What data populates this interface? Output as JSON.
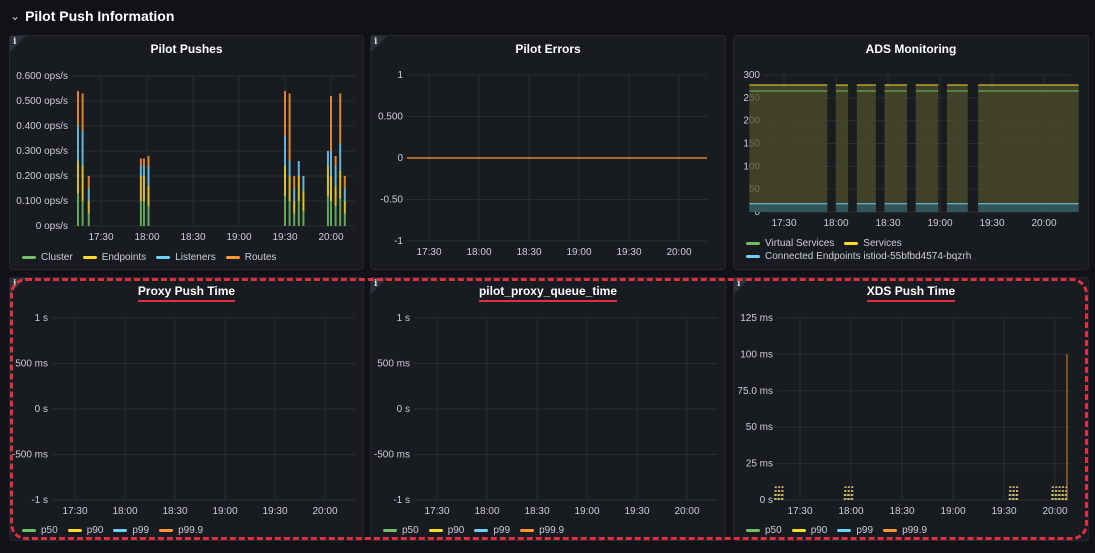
{
  "row": {
    "title": "Pilot Push Information",
    "chevron_icon": "chevron-down-icon"
  },
  "info_icon": "i",
  "panels": {
    "pilot_pushes": {
      "title": "Pilot Pushes",
      "y_ticks": [
        "0.600 ops/s",
        "0.500 ops/s",
        "0.400 ops/s",
        "0.300 ops/s",
        "0.200 ops/s",
        "0.100 ops/s",
        "0 ops/s"
      ],
      "x_ticks": [
        "17:30",
        "18:00",
        "18:30",
        "19:00",
        "19:30",
        "20:00"
      ],
      "legend": [
        {
          "label": "Cluster",
          "color": "#73bf69"
        },
        {
          "label": "Endpoints",
          "color": "#fade2a"
        },
        {
          "label": "Listeners",
          "color": "#73d0f8"
        },
        {
          "label": "Routes",
          "color": "#ff9830"
        }
      ]
    },
    "pilot_errors": {
      "title": "Pilot Errors",
      "y_ticks": [
        "1",
        "0.500",
        "0",
        "-0.50",
        "-1"
      ],
      "x_ticks": [
        "17:30",
        "18:00",
        "18:30",
        "19:00",
        "19:30",
        "20:00"
      ]
    },
    "ads_monitoring": {
      "title": "ADS Monitoring",
      "y_ticks": [
        "300",
        "250",
        "200",
        "150",
        "100",
        "50",
        "0"
      ],
      "x_ticks": [
        "17:30",
        "18:00",
        "18:30",
        "19:00",
        "19:30",
        "20:00"
      ],
      "legend": [
        {
          "label": "Virtual Services",
          "color": "#73bf69"
        },
        {
          "label": "Services",
          "color": "#fade2a"
        },
        {
          "label": "Connected Endpoints istiod-55bfbd4574-bqzrh",
          "color": "#73d0f8"
        }
      ]
    },
    "proxy_push_time": {
      "title": "Proxy Push Time",
      "y_ticks": [
        "1 s",
        "500 ms",
        "0 s",
        "-500 ms",
        "-1 s"
      ],
      "x_ticks": [
        "17:30",
        "18:00",
        "18:30",
        "19:00",
        "19:30",
        "20:00"
      ],
      "legend": [
        {
          "label": "p50",
          "color": "#73bf69"
        },
        {
          "label": "p90",
          "color": "#fade2a"
        },
        {
          "label": "p99",
          "color": "#73d0f8"
        },
        {
          "label": "p99.9",
          "color": "#ff9830"
        }
      ]
    },
    "pilot_proxy_queue_time": {
      "title": "pilot_proxy_queue_time",
      "y_ticks": [
        "1 s",
        "500 ms",
        "0 s",
        "-500 ms",
        "-1 s"
      ],
      "x_ticks": [
        "17:30",
        "18:00",
        "18:30",
        "19:00",
        "19:30",
        "20:00"
      ],
      "legend": [
        {
          "label": "p50",
          "color": "#73bf69"
        },
        {
          "label": "p90",
          "color": "#fade2a"
        },
        {
          "label": "p99",
          "color": "#73d0f8"
        },
        {
          "label": "p99.9",
          "color": "#ff9830"
        }
      ]
    },
    "xds_push_time": {
      "title": "XDS Push Time",
      "y_ticks": [
        "125 ms",
        "100 ms",
        "75.0 ms",
        "50 ms",
        "25 ms",
        "0 s"
      ],
      "x_ticks": [
        "17:30",
        "18:00",
        "18:30",
        "19:00",
        "19:30",
        "20:00"
      ],
      "legend": [
        {
          "label": "p50",
          "color": "#73bf69"
        },
        {
          "label": "p90",
          "color": "#fade2a"
        },
        {
          "label": "p99",
          "color": "#73d0f8"
        },
        {
          "label": "p99.9",
          "color": "#ff9830"
        }
      ]
    }
  },
  "chart_data": [
    {
      "type": "bar",
      "title": "Pilot Pushes",
      "ylim": [
        0,
        0.6
      ],
      "unit": "ops/s",
      "x": [
        "17:15",
        "17:18",
        "17:22",
        "17:56",
        "17:58",
        "18:01",
        "19:30",
        "19:33",
        "19:36",
        "19:39",
        "19:42",
        "19:58",
        "20:00",
        "20:03",
        "20:06",
        "20:09"
      ],
      "series": [
        {
          "name": "Cluster",
          "values": [
            0.13,
            0.1,
            0.05,
            0.1,
            0.1,
            0.08,
            0.12,
            0.1,
            0.05,
            0.1,
            0.06,
            0.12,
            0.1,
            0.08,
            0.11,
            0.05
          ]
        },
        {
          "name": "Endpoints",
          "values": [
            0.13,
            0.14,
            0.05,
            0.1,
            0.1,
            0.08,
            0.12,
            0.1,
            0.05,
            0.1,
            0.08,
            0.12,
            0.1,
            0.08,
            0.11,
            0.05
          ]
        },
        {
          "name": "Listeners",
          "values": [
            0.14,
            0.14,
            0.05,
            0.04,
            0.04,
            0.08,
            0.12,
            0.06,
            0.05,
            0.06,
            0.06,
            0.06,
            0.1,
            0.08,
            0.11,
            0.05
          ]
        },
        {
          "name": "Routes",
          "values": [
            0.14,
            0.15,
            0.05,
            0.03,
            0.03,
            0.04,
            0.18,
            0.27,
            0.05,
            0.0,
            0.0,
            0.0,
            0.22,
            0.04,
            0.2,
            0.05
          ]
        }
      ]
    },
    {
      "type": "line",
      "title": "Pilot Errors",
      "ylim": [
        -1,
        1
      ],
      "x": [
        "17:10",
        "20:20"
      ],
      "series": [
        {
          "values": [
            0,
            0
          ]
        }
      ]
    },
    {
      "type": "area",
      "title": "ADS Monitoring",
      "ylim": [
        0,
        300
      ],
      "x": [
        "17:10",
        "17:55",
        "18:00",
        "18:07",
        "18:12",
        "18:23",
        "18:28",
        "18:41",
        "18:46",
        "18:59",
        "19:04",
        "19:16",
        "19:22",
        "20:20"
      ],
      "segments": [
        [
          "17:10",
          "17:55"
        ],
        [
          "18:00",
          "18:07"
        ],
        [
          "18:12",
          "18:23"
        ],
        [
          "18:28",
          "18:41"
        ],
        [
          "18:46",
          "18:59"
        ],
        [
          "19:04",
          "19:16"
        ],
        [
          "19:22",
          "20:20"
        ]
      ],
      "series": [
        {
          "name": "Virtual Services",
          "value": 265
        },
        {
          "name": "Services",
          "value": 278
        },
        {
          "name": "Connected Endpoints istiod-55bfbd4574-bqzrh",
          "value": 18
        }
      ]
    },
    {
      "type": "line",
      "title": "Proxy Push Time",
      "ylim": [
        -1,
        1
      ],
      "series": [
        {
          "name": "p50",
          "values": []
        },
        {
          "name": "p90",
          "values": []
        },
        {
          "name": "p99",
          "values": []
        },
        {
          "name": "p99.9",
          "values": []
        }
      ]
    },
    {
      "type": "line",
      "title": "pilot_proxy_queue_time",
      "ylim": [
        -1,
        1
      ],
      "series": [
        {
          "name": "p50",
          "values": []
        },
        {
          "name": "p90",
          "values": []
        },
        {
          "name": "p99",
          "values": []
        },
        {
          "name": "p99.9",
          "values": []
        }
      ]
    },
    {
      "type": "bar",
      "title": "XDS Push Time",
      "ylim": [
        0,
        125
      ],
      "unit": "ms",
      "x": [
        "17:15",
        "17:17",
        "17:19",
        "17:56",
        "17:58",
        "18:00",
        "19:33",
        "19:35",
        "19:37",
        "19:58",
        "20:00",
        "20:02",
        "20:04",
        "20:06"
      ],
      "series": [
        {
          "name": "p50",
          "values": [
            5,
            5,
            5,
            5,
            5,
            5,
            5,
            5,
            5,
            5,
            5,
            5,
            5,
            5
          ]
        },
        {
          "name": "p90",
          "values": [
            9,
            9,
            9,
            9,
            9,
            9,
            9,
            9,
            9,
            9,
            9,
            9,
            9,
            9
          ]
        },
        {
          "name": "p99",
          "values": [
            10,
            10,
            10,
            10,
            10,
            10,
            10,
            10,
            10,
            10,
            10,
            10,
            10,
            10
          ]
        },
        {
          "name": "p99.9",
          "values": [
            10,
            10,
            10,
            10,
            10,
            10,
            10,
            10,
            10,
            10,
            10,
            10,
            10,
            100
          ]
        }
      ]
    }
  ]
}
